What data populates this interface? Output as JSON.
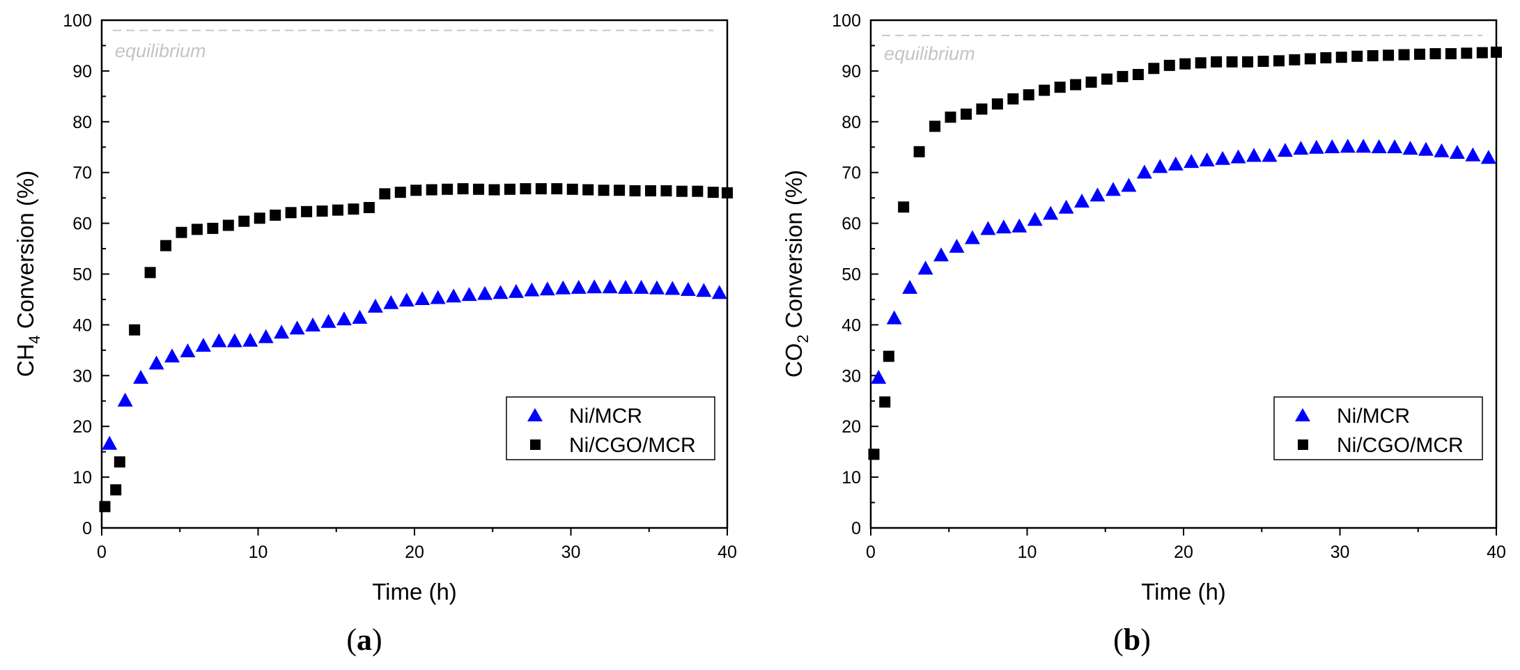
{
  "chart_data": [
    {
      "type": "scatter",
      "panel_label": "(a)",
      "panel_letter": "a",
      "xlabel": "Time (h)",
      "ylabel": {
        "pre": "CH",
        "sub": "4",
        "post": " Conversion (%)"
      },
      "xlim": [
        0,
        40
      ],
      "ylim": [
        0,
        100
      ],
      "xticks": [
        0,
        10,
        20,
        30,
        40
      ],
      "yticks": [
        0,
        10,
        20,
        30,
        40,
        50,
        60,
        70,
        80,
        90,
        100
      ],
      "equilibrium": {
        "label": "equilibrium",
        "value": 98,
        "color": "#c8c8c8"
      },
      "legend_position": "center-right",
      "series": [
        {
          "name": "Ni/MCR",
          "marker": "triangle",
          "color": "#0000ff",
          "x": [
            0.5,
            1.5,
            2.5,
            3.5,
            4.5,
            5.5,
            6.5,
            7.5,
            8.5,
            9.5,
            10.5,
            11.5,
            12.5,
            13.5,
            14.5,
            15.5,
            16.5,
            17.5,
            18.5,
            19.5,
            20.5,
            21.5,
            22.5,
            23.5,
            24.5,
            25.5,
            26.5,
            27.5,
            28.5,
            29.5,
            30.5,
            31.5,
            32.5,
            33.5,
            34.5,
            35.5,
            36.5,
            37.5,
            38.5,
            39.5
          ],
          "y": [
            16.5,
            25,
            29.5,
            32.3,
            33.7,
            34.7,
            35.8,
            36.7,
            36.7,
            36.8,
            37.5,
            38.4,
            39.2,
            39.8,
            40.5,
            41,
            41.3,
            43.5,
            44.2,
            44.7,
            45,
            45.2,
            45.5,
            45.8,
            46,
            46.2,
            46.4,
            46.7,
            46.9,
            47.1,
            47.2,
            47.3,
            47.3,
            47.2,
            47.2,
            47.1,
            47,
            46.8,
            46.6,
            46.2
          ]
        },
        {
          "name": "Ni/CGO/MCR",
          "marker": "square",
          "color": "#000000",
          "x": [
            0.2,
            0.9,
            1.15,
            2.1,
            3.1,
            4.1,
            5.1,
            6.1,
            7.1,
            8.1,
            9.1,
            10.1,
            11.1,
            12.1,
            13.1,
            14.1,
            15.1,
            16.1,
            17.1,
            18.1,
            19.1,
            20.1,
            21.1,
            22.1,
            23.1,
            24.1,
            25.1,
            26.1,
            27.1,
            28.1,
            29.1,
            30.1,
            31.1,
            32.1,
            33.1,
            34.1,
            35.1,
            36.1,
            37.1,
            38.1,
            39.1,
            40
          ],
          "y": [
            4.2,
            7.5,
            13,
            39,
            50.3,
            55.6,
            58.2,
            58.8,
            59,
            59.6,
            60.4,
            61,
            61.6,
            62.1,
            62.3,
            62.4,
            62.6,
            62.8,
            63.1,
            65.8,
            66.1,
            66.5,
            66.6,
            66.7,
            66.8,
            66.7,
            66.6,
            66.7,
            66.8,
            66.8,
            66.8,
            66.7,
            66.6,
            66.5,
            66.5,
            66.4,
            66.4,
            66.4,
            66.3,
            66.3,
            66.1,
            66
          ]
        }
      ]
    },
    {
      "type": "scatter",
      "panel_label": "(b)",
      "panel_letter": "b",
      "xlabel": "Time (h)",
      "ylabel": {
        "pre": "CO",
        "sub": "2",
        "post": " Conversion (%)"
      },
      "xlim": [
        0,
        40
      ],
      "ylim": [
        0,
        100
      ],
      "xticks": [
        0,
        10,
        20,
        30,
        40
      ],
      "yticks": [
        0,
        10,
        20,
        30,
        40,
        50,
        60,
        70,
        80,
        90,
        100
      ],
      "equilibrium": {
        "label": "equilibrium",
        "value": 97,
        "color": "#c8c8c8"
      },
      "legend_position": "center-right",
      "series": [
        {
          "name": "Ni/MCR",
          "marker": "triangle",
          "color": "#0000ff",
          "x": [
            0.5,
            1.5,
            2.5,
            3.5,
            4.5,
            5.5,
            6.5,
            7.5,
            8.5,
            9.5,
            10.5,
            11.5,
            12.5,
            13.5,
            14.5,
            15.5,
            16.5,
            17.5,
            18.5,
            19.5,
            20.5,
            21.5,
            22.5,
            23.5,
            24.5,
            25.5,
            26.5,
            27.5,
            28.5,
            29.5,
            30.5,
            31.5,
            32.5,
            33.5,
            34.5,
            35.5,
            36.5,
            37.5,
            38.5,
            39.5
          ],
          "y": [
            29.5,
            41.2,
            47.2,
            51,
            53.6,
            55.3,
            57,
            58.8,
            59.1,
            59.3,
            60.6,
            61.8,
            63,
            64.2,
            65.4,
            66.5,
            67.3,
            69.9,
            71,
            71.5,
            72,
            72.3,
            72.6,
            72.9,
            73.2,
            73.2,
            74.2,
            74.6,
            74.8,
            74.9,
            75,
            75,
            74.9,
            74.9,
            74.6,
            74.4,
            74.1,
            73.8,
            73.3,
            72.8
          ]
        },
        {
          "name": "Ni/CGO/MCR",
          "marker": "square",
          "color": "#000000",
          "x": [
            0.2,
            0.9,
            1.15,
            2.1,
            3.1,
            4.1,
            5.1,
            6.1,
            7.1,
            8.1,
            9.1,
            10.1,
            11.1,
            12.1,
            13.1,
            14.1,
            15.1,
            16.1,
            17.1,
            18.1,
            19.1,
            20.1,
            21.1,
            22.1,
            23.1,
            24.1,
            25.1,
            26.1,
            27.1,
            28.1,
            29.1,
            30.1,
            31.1,
            32.1,
            33.1,
            34.1,
            35.1,
            36.1,
            37.1,
            38.1,
            39.1,
            40
          ],
          "y": [
            14.5,
            24.8,
            33.8,
            63.2,
            74.1,
            79.1,
            80.9,
            81.5,
            82.5,
            83.5,
            84.5,
            85.3,
            86.2,
            86.8,
            87.3,
            87.8,
            88.4,
            88.9,
            89.3,
            90.5,
            91.1,
            91.4,
            91.6,
            91.8,
            91.8,
            91.8,
            91.9,
            92,
            92.2,
            92.4,
            92.6,
            92.7,
            92.9,
            93,
            93.1,
            93.2,
            93.3,
            93.4,
            93.4,
            93.5,
            93.6,
            93.7
          ]
        }
      ]
    }
  ]
}
